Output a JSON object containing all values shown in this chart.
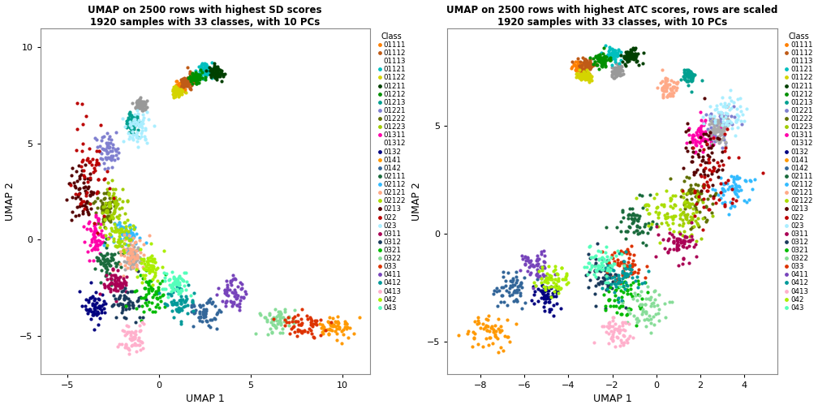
{
  "title1": "UMAP on 2500 rows with highest SD scores\n1920 samples with 33 classes, with 10 PCs",
  "title2": "UMAP on 2500 rows with highest ATC scores, rows are scaled\n1920 samples with 33 classes, with 10 PCs",
  "xlabel": "UMAP 1",
  "ylabel": "UMAP 2",
  "legend_title": "Class",
  "xlim1": [
    -6.5,
    11.5
  ],
  "ylim1": [
    -7,
    11
  ],
  "xlim2": [
    -9.5,
    5.5
  ],
  "ylim2": [
    -6.5,
    9.5
  ],
  "xticks1": [
    -5,
    0,
    5,
    10
  ],
  "yticks1": [
    -5,
    0,
    5,
    10
  ],
  "xticks2": [
    -8,
    -6,
    -4,
    -2,
    0,
    2,
    4
  ],
  "yticks2": [
    -5,
    0,
    5
  ],
  "classes": [
    "01111",
    "01112",
    "01113",
    "01121",
    "01122",
    "01211",
    "01212",
    "01213",
    "01221",
    "01222",
    "01223",
    "01311",
    "01312",
    "0132",
    "0141",
    "0142",
    "02111",
    "02112",
    "02121",
    "02122",
    "0213",
    "022",
    "023",
    "0311",
    "0312",
    "0321",
    "0322",
    "033",
    "0411",
    "0412",
    "0413",
    "042",
    "043"
  ],
  "colors_map": {
    "01111": "#FF8000",
    "01112": "#BF5B17",
    "01113": "#999999",
    "01121": "#00BFBF",
    "01122": "#D4D400",
    "01211": "#004000",
    "01212": "#009000",
    "01213": "#00A090",
    "01221": "#8080D0",
    "01222": "#607000",
    "01223": "#A0CC00",
    "01311": "#FF00AA",
    "01312": "#AAAAAA",
    "0132": "#000080",
    "0141": "#FF9900",
    "0142": "#336699",
    "02111": "#1A6B3C",
    "02112": "#33BBFF",
    "02121": "#FFAA88",
    "02122": "#AADD00",
    "0213": "#550000",
    "022": "#BB0000",
    "023": "#AAEEFF",
    "0311": "#AA0055",
    "0312": "#1A3A5C",
    "0321": "#00BB00",
    "0322": "#88DD99",
    "033": "#DD3300",
    "0411": "#7744BB",
    "0412": "#009999",
    "0413": "#FFB0CC",
    "042": "#AAEE00",
    "043": "#55FFBB"
  },
  "point_size": 9,
  "n_points": 1920
}
